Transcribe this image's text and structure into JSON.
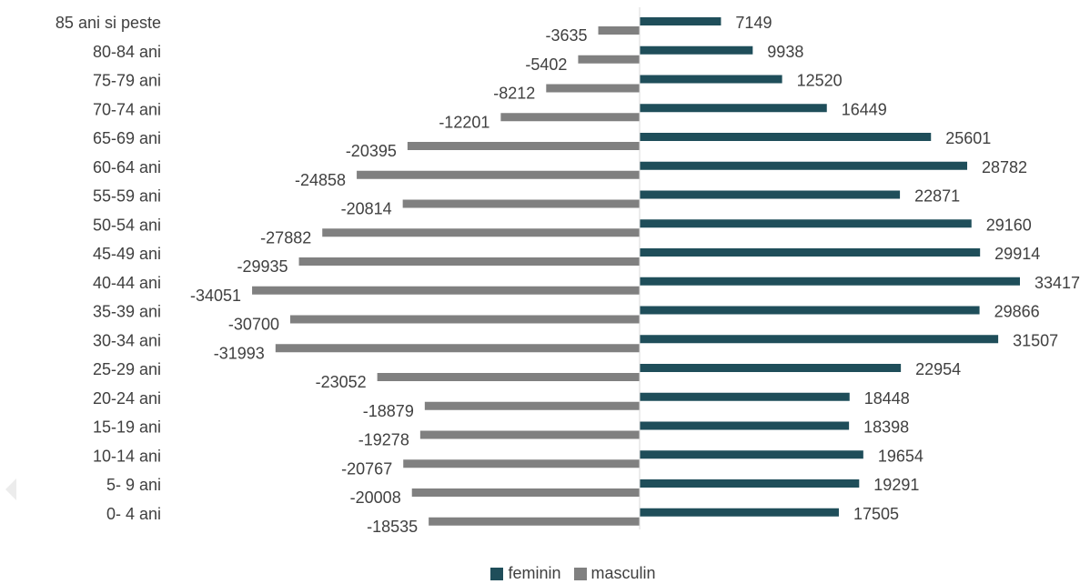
{
  "chart_data": {
    "type": "bar",
    "orientation": "horizontal",
    "categories": [
      "85 ani si peste",
      "80-84 ani",
      "75-79 ani",
      "70-74 ani",
      "65-69 ani",
      "60-64 ani",
      "55-59 ani",
      "50-54 ani",
      "45-49 ani",
      "40-44 ani",
      "35-39 ani",
      "30-34 ani",
      "25-29 ani",
      "20-24 ani",
      "15-19 ani",
      "10-14 ani",
      "5- 9 ani",
      "0- 4 ani"
    ],
    "series": [
      {
        "name": "feminin",
        "color": "#1f4e5a",
        "values": [
          7149,
          9938,
          12520,
          16449,
          25601,
          28782,
          22871,
          29160,
          29914,
          33417,
          29866,
          31507,
          22954,
          18448,
          18398,
          19654,
          19291,
          17505
        ]
      },
      {
        "name": "masculin",
        "color": "#808080",
        "values": [
          -3635,
          -5402,
          -8212,
          -12201,
          -20395,
          -24858,
          -20814,
          -27882,
          -29935,
          -34051,
          -30700,
          -31993,
          -23052,
          -18879,
          -19278,
          -20767,
          -20008,
          -18535
        ]
      }
    ],
    "legend_position": "bottom",
    "grid": false
  }
}
